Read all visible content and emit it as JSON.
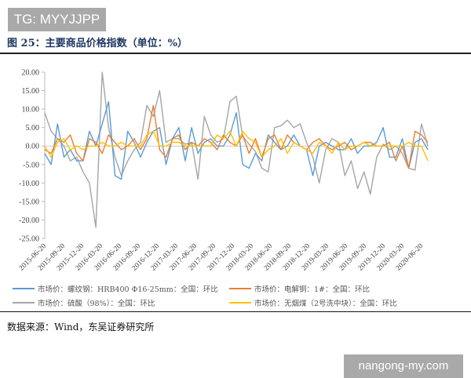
{
  "watermark_top": "TG: MYYJJPP",
  "watermark_bottom": "nangong-my.com",
  "figure_title": "图 25：主要商品价格指数（单位：%）",
  "source": "数据来源：Wind，东吴证券研究所",
  "chart_data": {
    "type": "line",
    "title": "",
    "xlabel": "",
    "ylabel": "",
    "ylim": [
      -25,
      20
    ],
    "yticks": [
      "20.00",
      "15.00",
      "10.00",
      "5.00",
      "0.00",
      "-5.00",
      "-10.00",
      "-15.00",
      "-20.00",
      "-25.00"
    ],
    "xticks": [
      "2015-06-20",
      "2015-09-20",
      "2015-12-20",
      "2016-03-20",
      "2016-06-20",
      "2016-09-20",
      "2016-12-20",
      "2017-03-20",
      "2017-06-20",
      "2017-09-20",
      "2017-12-20",
      "2018-03-20",
      "2018-06-20",
      "2018-09-20",
      "2018-12-20",
      "2019-03-20",
      "2019-06-20",
      "2019-09-20",
      "2019-12-20",
      "2020-03-20",
      "2020-06-20"
    ],
    "grid": false,
    "legend_position": "bottom",
    "x": [
      "2015-06",
      "2015-07",
      "2015-08",
      "2015-09",
      "2015-10",
      "2015-11",
      "2015-12",
      "2016-01",
      "2016-02",
      "2016-03",
      "2016-04",
      "2016-05",
      "2016-06",
      "2016-07",
      "2016-08",
      "2016-09",
      "2016-10",
      "2016-11",
      "2016-12",
      "2017-01",
      "2017-02",
      "2017-03",
      "2017-04",
      "2017-05",
      "2017-06",
      "2017-07",
      "2017-08",
      "2017-09",
      "2017-10",
      "2017-11",
      "2017-12",
      "2018-01",
      "2018-02",
      "2018-03",
      "2018-04",
      "2018-05",
      "2018-06",
      "2018-07",
      "2018-08",
      "2018-09",
      "2018-10",
      "2018-11",
      "2018-12",
      "2019-01",
      "2019-02",
      "2019-03",
      "2019-04",
      "2019-05",
      "2019-06",
      "2019-07",
      "2019-08",
      "2019-09",
      "2019-10",
      "2019-11",
      "2019-12",
      "2020-01",
      "2020-02",
      "2020-03",
      "2020-04",
      "2020-05",
      "2020-06"
    ],
    "series": [
      {
        "name": "市场价：螺纹钢：HRB400 Φ16-25mm：全国：环比",
        "color": "#5b9bd5",
        "values": [
          -2,
          -5,
          6,
          -3,
          -1,
          -4,
          -4,
          4,
          0,
          6,
          12,
          -8,
          -9,
          4,
          1,
          -3,
          1,
          4,
          5,
          -5,
          2,
          5,
          -4,
          5,
          -2,
          1,
          2,
          0,
          0,
          3,
          9,
          -5,
          -6,
          -2,
          -4,
          3,
          1,
          -1,
          0,
          3,
          0,
          -1,
          -8,
          0,
          1,
          0,
          -1,
          -1,
          2,
          -2,
          0,
          0,
          1,
          5,
          -3,
          -3,
          2,
          -6,
          1,
          2,
          -1
        ]
      },
      {
        "name": "市场价：电解铜：1#：全国：环比",
        "color": "#ed7d31",
        "values": [
          -1,
          -2,
          2,
          1,
          3,
          -2,
          -4,
          2,
          1,
          -2,
          3,
          1,
          -1,
          0,
          2,
          -1,
          2,
          11,
          -1,
          -3,
          2,
          3,
          -1,
          1,
          0,
          2,
          1,
          -1,
          3,
          1,
          0,
          3,
          -2,
          2,
          -3,
          2,
          3,
          -1,
          3,
          1,
          0,
          -1,
          1,
          2,
          0,
          -1,
          0,
          1,
          -1,
          0,
          1,
          1,
          0,
          0,
          1,
          -4,
          0,
          -6,
          4,
          3,
          1
        ]
      },
      {
        "name": "市场价：硫酸（98%）：全国：环比",
        "color": "#a5a5a5",
        "values": [
          9,
          4,
          2,
          0,
          -4,
          -3,
          -7,
          -10,
          -22,
          20,
          5,
          -3,
          -8,
          -4,
          -1,
          1,
          11,
          8,
          15,
          1,
          2,
          2,
          0.5,
          1,
          -9,
          8,
          3,
          1,
          2,
          12,
          13.5,
          2.7,
          0.5,
          -1.5,
          -6,
          -7,
          5,
          5.5,
          7,
          5,
          6,
          1,
          -3,
          -10,
          -1,
          2,
          1,
          -8,
          -4,
          -11.5,
          -7,
          -13,
          -3,
          0.5,
          -1,
          0,
          -2,
          -6,
          -6.5,
          6,
          0
        ]
      },
      {
        "name": "市场价：无烟煤（2号洗中块）：全国：环比",
        "color": "#ffc000",
        "values": [
          0,
          -3,
          1,
          2,
          -1,
          0,
          -1,
          0,
          0,
          1,
          0,
          0,
          1,
          0,
          0,
          0,
          3,
          4,
          0,
          0,
          1,
          1,
          0,
          0,
          0,
          0,
          0,
          3,
          2,
          4,
          0,
          4,
          2,
          1,
          -3,
          -1,
          0,
          2,
          -2,
          1,
          0,
          -1,
          -2,
          1,
          0,
          -2,
          1,
          -1,
          0,
          0,
          1,
          0,
          0,
          0,
          0,
          0,
          0,
          1,
          0,
          0,
          -4
        ]
      }
    ]
  }
}
